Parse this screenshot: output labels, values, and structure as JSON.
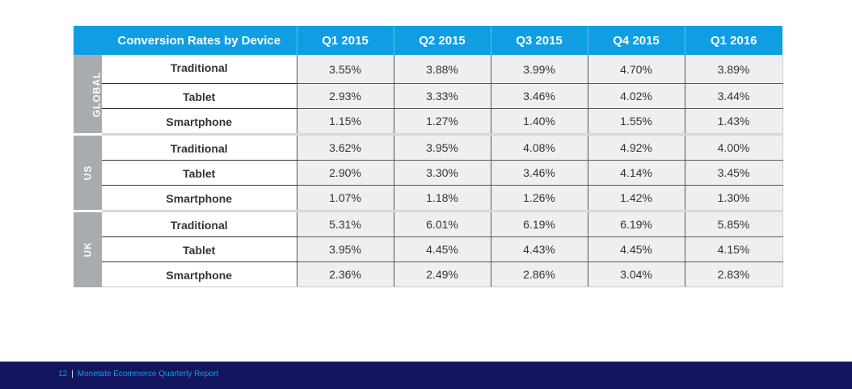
{
  "table": {
    "title": "Conversion Rates by Device",
    "columns": [
      "Q1 2015",
      "Q2 2015",
      "Q3 2015",
      "Q4 2015",
      "Q1 2016"
    ],
    "groups": [
      {
        "region": "GLOBAL",
        "rows": [
          {
            "device": "Traditional",
            "values": [
              "3.55%",
              "3.88%",
              "3.99%",
              "4.70%",
              "3.89%"
            ]
          },
          {
            "device": "Tablet",
            "values": [
              "2.93%",
              "3.33%",
              "3.46%",
              "4.02%",
              "3.44%"
            ]
          },
          {
            "device": "Smartphone",
            "values": [
              "1.15%",
              "1.27%",
              "1.40%",
              "1.55%",
              "1.43%"
            ]
          }
        ]
      },
      {
        "region": "US",
        "rows": [
          {
            "device": "Traditional",
            "values": [
              "3.62%",
              "3.95%",
              "4.08%",
              "4.92%",
              "4.00%"
            ]
          },
          {
            "device": "Tablet",
            "values": [
              "2.90%",
              "3.30%",
              "3.46%",
              "4.14%",
              "3.45%"
            ]
          },
          {
            "device": "Smartphone",
            "values": [
              "1.07%",
              "1.18%",
              "1.26%",
              "1.42%",
              "1.30%"
            ]
          }
        ]
      },
      {
        "region": "UK",
        "rows": [
          {
            "device": "Traditional",
            "values": [
              "5.31%",
              "6.01%",
              "6.19%",
              "6.19%",
              "5.85%"
            ]
          },
          {
            "device": "Tablet",
            "values": [
              "3.95%",
              "4.45%",
              "4.43%",
              "4.45%",
              "4.15%"
            ]
          },
          {
            "device": "Smartphone",
            "values": [
              "2.36%",
              "2.49%",
              "2.86%",
              "3.04%",
              "2.83%"
            ]
          }
        ]
      }
    ]
  },
  "footer": {
    "page_number": "12",
    "separator": "|",
    "report_title": "Monetate Ecommerce Quarterly Report"
  },
  "colors": {
    "header_blue": "#109ee3",
    "region_gray": "#a7acaf",
    "cell_gray": "#efeff1",
    "footer_navy": "#13155f",
    "footer_text_blue": "#1a9be0"
  }
}
